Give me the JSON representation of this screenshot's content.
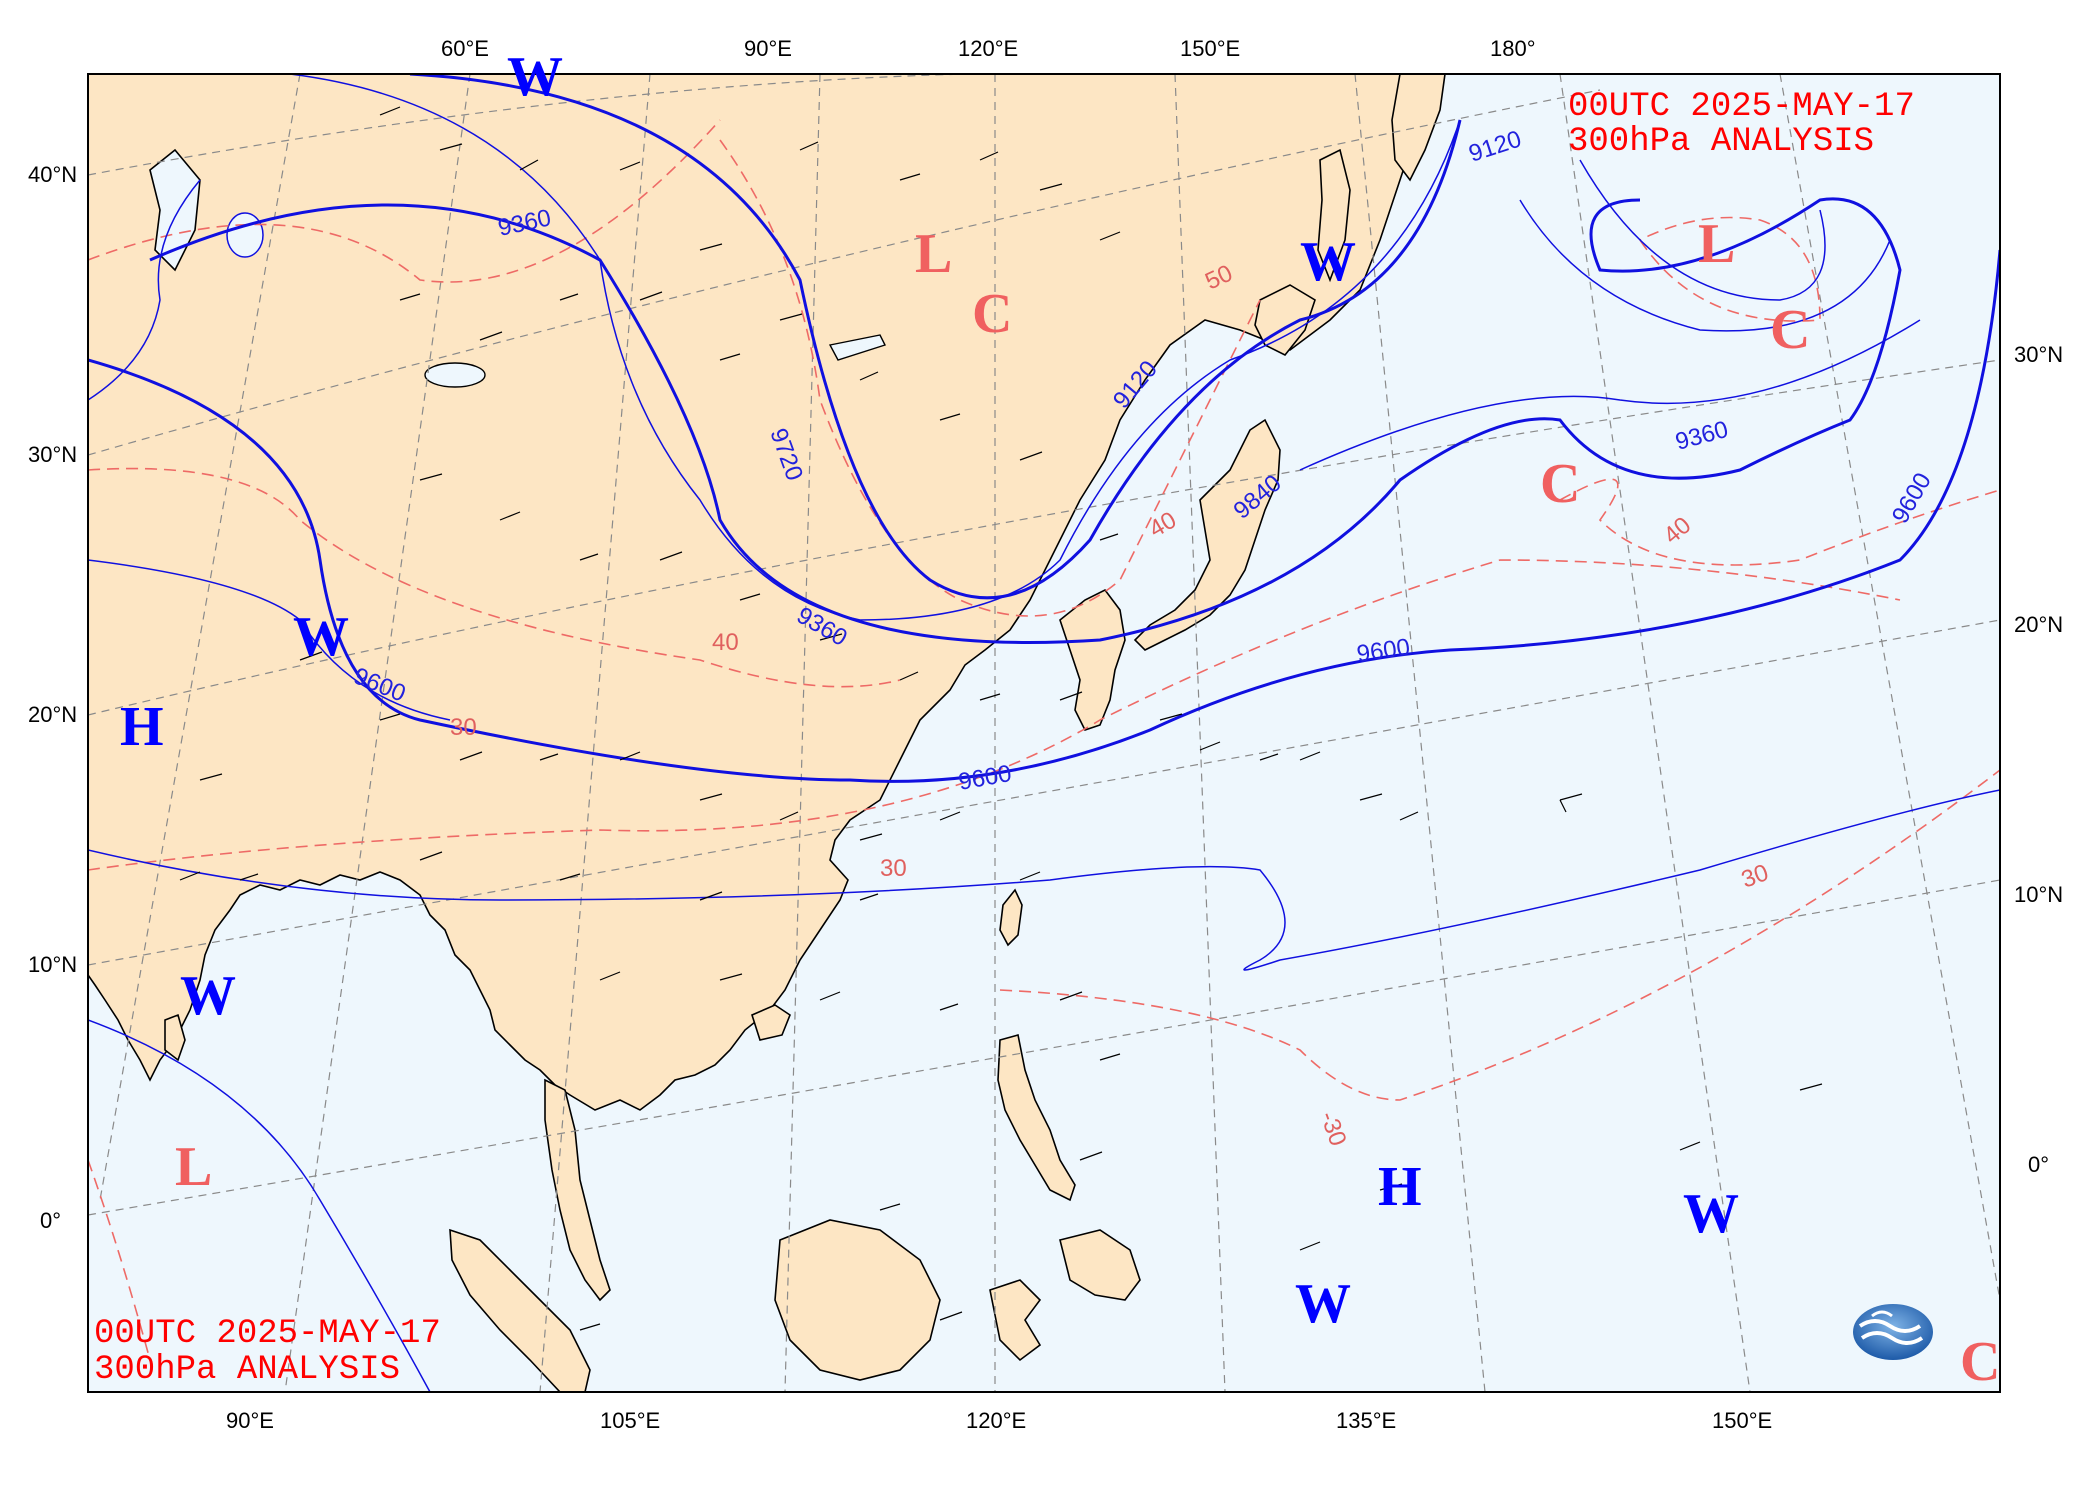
{
  "title": {
    "time": "00UTC  2025-MAY-17",
    "level": "300hPa ANALYSIS"
  },
  "top_lon_labels": [
    "60°E",
    "90°E",
    "120°E",
    "150°E",
    "180°"
  ],
  "bottom_lon_labels": [
    "90°E",
    "105°E",
    "120°E",
    "135°E",
    "150°E"
  ],
  "left_lat_labels": [
    "40°N",
    "30°N",
    "20°N",
    "10°N",
    "0°"
  ],
  "right_lat_labels": [
    "30°N",
    "20°N",
    "10°N",
    "0°"
  ],
  "height_contour_labels": [
    "9120",
    "9360",
    "9600",
    "9120",
    "9360",
    "9600",
    "9600",
    "9720",
    "9840",
    "9360",
    "9600"
  ],
  "temperature_contour_labels": [
    "40",
    "50",
    "30",
    "-30",
    "40",
    "30",
    "40",
    "30"
  ],
  "pressure_centers": [
    {
      "label": "W",
      "color": "#0000ff"
    },
    {
      "label": "W",
      "color": "#0000ff"
    },
    {
      "label": "W",
      "color": "#0000ff"
    },
    {
      "label": "H",
      "color": "#0000ff"
    },
    {
      "label": "W",
      "color": "#0000ff"
    },
    {
      "label": "L",
      "color": "#f06060"
    },
    {
      "label": "L",
      "color": "#f06060"
    },
    {
      "label": "C",
      "color": "#f06060"
    },
    {
      "label": "L",
      "color": "#f06060"
    },
    {
      "label": "C",
      "color": "#f06060"
    },
    {
      "label": "C",
      "color": "#f06060"
    },
    {
      "label": "H",
      "color": "#0000ff"
    },
    {
      "label": "W",
      "color": "#0000ff"
    },
    {
      "label": "W",
      "color": "#0000ff"
    },
    {
      "label": "C",
      "color": "#f06060"
    }
  ],
  "colors": {
    "land": "#fde6c4",
    "ocean": "#eef7fd",
    "height_contour": "#1010e0",
    "temperature_contour": "#ee6a66",
    "graticule": "#888888",
    "title": "#ff0000"
  },
  "logo": "cwa-logo"
}
